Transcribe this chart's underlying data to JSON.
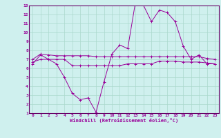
{
  "xlabel": "Windchill (Refroidissement éolien,°C)",
  "bg_color": "#cff0ee",
  "grid_color": "#aad8cc",
  "line_color": "#990099",
  "border_color": "#660066",
  "xlim": [
    -0.5,
    23.5
  ],
  "ylim": [
    1,
    13
  ],
  "xticks": [
    0,
    1,
    2,
    3,
    4,
    5,
    6,
    7,
    8,
    9,
    10,
    11,
    12,
    13,
    14,
    15,
    16,
    17,
    18,
    19,
    20,
    21,
    22,
    23
  ],
  "yticks": [
    1,
    2,
    3,
    4,
    5,
    6,
    7,
    8,
    9,
    10,
    11,
    12,
    13
  ],
  "line1_x": [
    0,
    1,
    2,
    3,
    4,
    5,
    6,
    7,
    8,
    9,
    10,
    11,
    12,
    13,
    14,
    15,
    16,
    17,
    18,
    19,
    20,
    21,
    22,
    23
  ],
  "line1_y": [
    6.5,
    7.5,
    7.0,
    6.5,
    5.0,
    3.2,
    2.5,
    2.7,
    1.1,
    4.5,
    7.6,
    8.6,
    8.2,
    13.5,
    13.0,
    11.2,
    12.5,
    12.2,
    11.2,
    8.5,
    7.0,
    7.5,
    6.5,
    6.5
  ],
  "line2_x": [
    0,
    1,
    2,
    3,
    4,
    5,
    6,
    7,
    8,
    9,
    10,
    11,
    12,
    13,
    14,
    15,
    16,
    17,
    18,
    19,
    20,
    21,
    22,
    23
  ],
  "line2_y": [
    7.0,
    7.6,
    7.5,
    7.4,
    7.4,
    7.4,
    7.4,
    7.4,
    7.3,
    7.3,
    7.3,
    7.3,
    7.3,
    7.3,
    7.3,
    7.3,
    7.3,
    7.3,
    7.3,
    7.3,
    7.3,
    7.3,
    7.1,
    7.0
  ],
  "line3_x": [
    0,
    1,
    2,
    3,
    4,
    5,
    6,
    7,
    8,
    9,
    10,
    11,
    12,
    13,
    14,
    15,
    16,
    17,
    18,
    19,
    20,
    21,
    22,
    23
  ],
  "line3_y": [
    6.7,
    7.0,
    7.0,
    7.0,
    7.0,
    6.3,
    6.3,
    6.3,
    6.3,
    6.3,
    6.3,
    6.3,
    6.5,
    6.5,
    6.5,
    6.5,
    6.8,
    6.8,
    6.8,
    6.7,
    6.7,
    6.7,
    6.6,
    6.5
  ]
}
